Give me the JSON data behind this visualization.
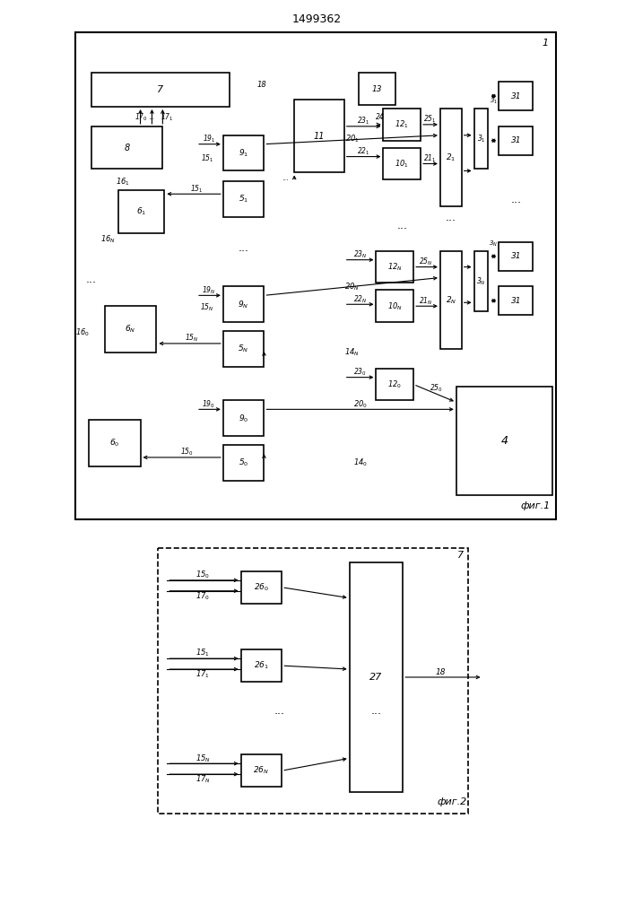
{
  "title": "1499362",
  "fig1_label": "фиг.1",
  "fig2_label": "фиг.2",
  "bg_color": "#ffffff",
  "line_color": "#000000",
  "box_color": "#ffffff"
}
